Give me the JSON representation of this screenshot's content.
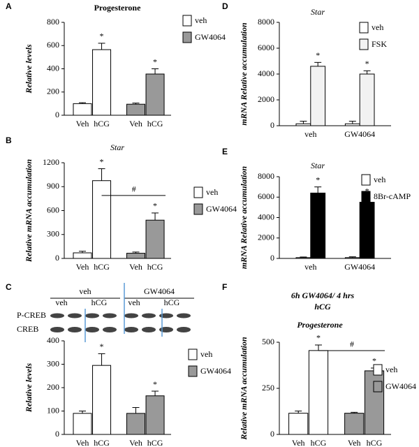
{
  "chart_data": [
    {
      "type": "bar",
      "panel": "A",
      "title": "Progesterone",
      "ylabel": "Relative levels",
      "categories": [
        "Veh",
        "hCG",
        "Veh",
        "hCG"
      ],
      "ylim": [
        0,
        800
      ],
      "yticks": [
        0,
        200,
        400,
        600,
        800
      ],
      "series": [
        {
          "name": "veh",
          "color": "#ffffff",
          "values": [
            100,
            565,
            null,
            null
          ],
          "errors": [
            8,
            55,
            null,
            null
          ],
          "annotations": [
            null,
            "*",
            null,
            null
          ]
        },
        {
          "name": "GW4064",
          "color": "#999999",
          "values": [
            null,
            null,
            95,
            355
          ],
          "errors": [
            null,
            null,
            10,
            45
          ],
          "annotations": [
            null,
            null,
            null,
            "*"
          ]
        }
      ]
    },
    {
      "type": "bar",
      "panel": "B",
      "title": "Star",
      "ylabel": "Relative mRNA accumulation",
      "categories": [
        "Veh",
        "hCG",
        "Veh",
        "hCG"
      ],
      "ylim": [
        0,
        1200
      ],
      "yticks": [
        0,
        300,
        600,
        900,
        1200
      ],
      "bracket_label": "#",
      "series": [
        {
          "name": "veh",
          "color": "#ffffff",
          "values": [
            70,
            975,
            null,
            null
          ],
          "errors": [
            20,
            150,
            null,
            null
          ],
          "annotations": [
            null,
            "*",
            null,
            null
          ]
        },
        {
          "name": "GW4064",
          "color": "#999999",
          "values": [
            null,
            null,
            65,
            480
          ],
          "errors": [
            null,
            null,
            15,
            90
          ],
          "annotations": [
            null,
            null,
            null,
            "*"
          ]
        }
      ]
    },
    {
      "type": "bar",
      "panel": "C",
      "ylabel": "Relative levels",
      "blot": {
        "groups": [
          "veh",
          "GW4064"
        ],
        "lanes": [
          "veh",
          "hCG",
          "veh",
          "hCG"
        ],
        "rows": [
          "P-CREB",
          "CREB"
        ]
      },
      "categories": [
        "Veh",
        "hCG",
        "Veh",
        "hCG"
      ],
      "ylim": [
        0,
        400
      ],
      "yticks": [
        0,
        100,
        200,
        300,
        400
      ],
      "series": [
        {
          "name": "veh",
          "color": "#ffffff",
          "values": [
            90,
            295,
            null,
            null
          ],
          "errors": [
            10,
            50,
            null,
            null
          ],
          "annotations": [
            null,
            "*",
            null,
            null
          ]
        },
        {
          "name": "GW4064",
          "color": "#999999",
          "values": [
            null,
            null,
            90,
            165
          ],
          "errors": [
            null,
            null,
            25,
            20
          ],
          "annotations": [
            null,
            null,
            null,
            "*"
          ]
        }
      ]
    },
    {
      "type": "bar",
      "panel": "D",
      "title": "Star",
      "ylabel": "mRNA Relative accumulation",
      "categories": [
        "veh",
        "GW4064"
      ],
      "ylim": [
        0,
        8000
      ],
      "yticks": [
        0,
        2000,
        4000,
        6000,
        8000
      ],
      "series": [
        {
          "name": "veh",
          "color": "#ffffff",
          "values": [
            150,
            150
          ],
          "errors": [
            200,
            200
          ],
          "annotations": [
            null,
            null
          ]
        },
        {
          "name": "FSK",
          "color": "#f2f2f2",
          "values": [
            4600,
            4000
          ],
          "errors": [
            300,
            250
          ],
          "annotations": [
            "*",
            "*"
          ]
        }
      ]
    },
    {
      "type": "bar",
      "panel": "E",
      "title": "Star",
      "ylabel": "mRNA Relative accumulation",
      "categories": [
        "veh",
        "GW4064"
      ],
      "ylim": [
        0,
        8000
      ],
      "yticks": [
        0,
        2000,
        4000,
        6000,
        8000
      ],
      "series": [
        {
          "name": "veh",
          "color": "#ffffff",
          "values": [
            80,
            80
          ],
          "errors": [
            60,
            80
          ],
          "annotations": [
            null,
            null
          ]
        },
        {
          "name": "8Br-cAMP",
          "color": "#000000",
          "values": [
            6400,
            5500
          ],
          "errors": [
            600,
            400
          ],
          "annotations": [
            "*",
            "*"
          ]
        }
      ]
    },
    {
      "type": "bar",
      "panel": "F",
      "title": [
        "6h GW4064/ 4 hrs",
        "hCG"
      ],
      "subtitle": "Progesterone",
      "ylabel": "Relative mRNA accumulation",
      "categories": [
        "Veh",
        "hCG",
        "Veh",
        "hCG"
      ],
      "ylim": [
        0,
        500
      ],
      "yticks": [
        0,
        250,
        500
      ],
      "bracket_label": "#",
      "series": [
        {
          "name": "veh",
          "color": "#ffffff",
          "values": [
            115,
            455,
            null,
            null
          ],
          "errors": [
            12,
            30,
            null,
            null
          ],
          "annotations": [
            null,
            "*",
            null,
            null
          ]
        },
        {
          "name": "GW4064",
          "color": "#999999",
          "values": [
            null,
            null,
            115,
            345
          ],
          "errors": [
            null,
            null,
            5,
            15
          ],
          "annotations": [
            null,
            null,
            null,
            "*"
          ]
        }
      ]
    }
  ]
}
